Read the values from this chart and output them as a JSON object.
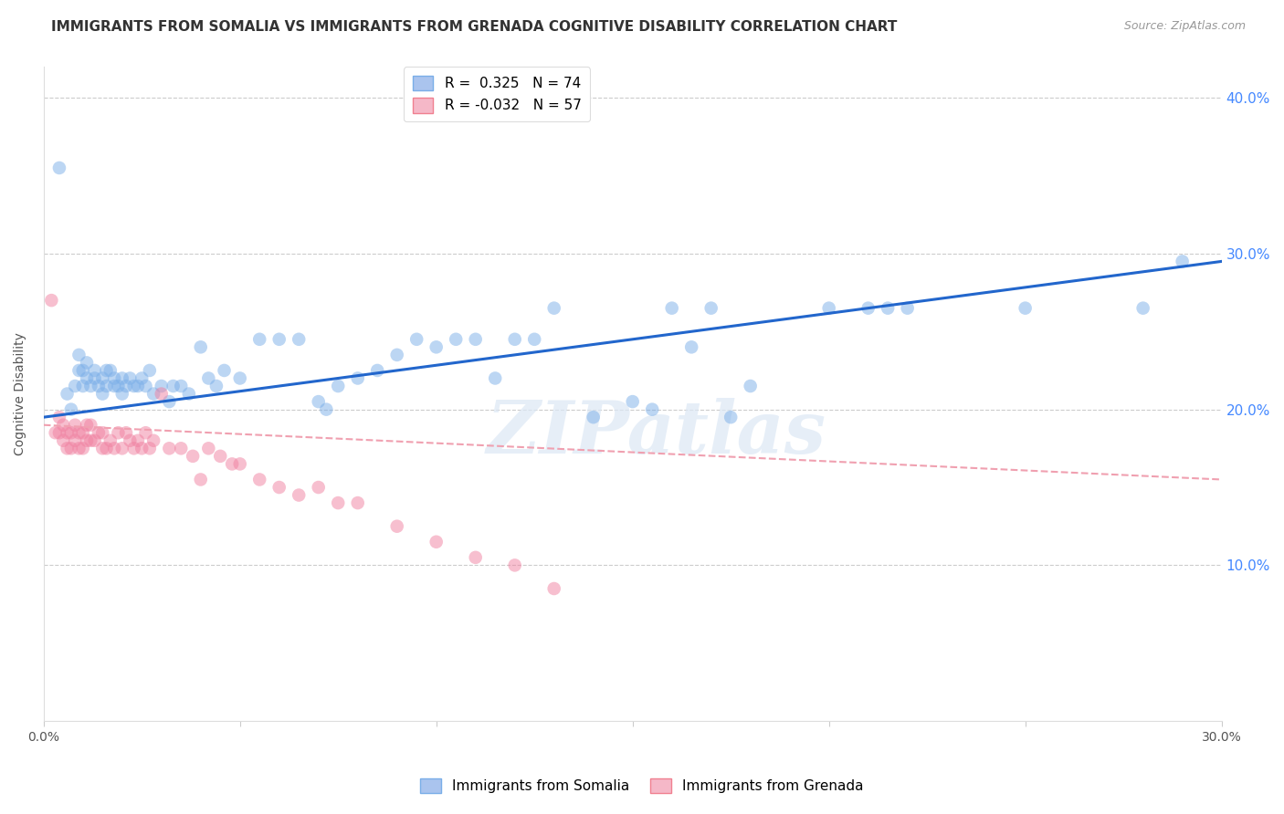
{
  "title": "IMMIGRANTS FROM SOMALIA VS IMMIGRANTS FROM GRENADA COGNITIVE DISABILITY CORRELATION CHART",
  "source": "Source: ZipAtlas.com",
  "ylabel": "Cognitive Disability",
  "xlim": [
    0.0,
    0.3
  ],
  "ylim": [
    0.0,
    0.42
  ],
  "grid_color": "#cccccc",
  "background_color": "#ffffff",
  "somalia_color": "#7aaee8",
  "grenada_color": "#f080a0",
  "somalia_line_color": "#2266cc",
  "grenada_line_color": "#f0a0b0",
  "right_ytick_color": "#4488ff",
  "r_somalia": 0.325,
  "n_somalia": 74,
  "r_grenada": -0.032,
  "n_grenada": 57,
  "somalia_scatter_x": [
    0.004,
    0.006,
    0.007,
    0.008,
    0.009,
    0.009,
    0.01,
    0.01,
    0.011,
    0.011,
    0.012,
    0.013,
    0.013,
    0.014,
    0.015,
    0.015,
    0.016,
    0.016,
    0.017,
    0.018,
    0.018,
    0.019,
    0.02,
    0.02,
    0.021,
    0.022,
    0.023,
    0.024,
    0.025,
    0.026,
    0.027,
    0.028,
    0.03,
    0.032,
    0.033,
    0.035,
    0.037,
    0.04,
    0.042,
    0.044,
    0.046,
    0.05,
    0.055,
    0.06,
    0.065,
    0.07,
    0.072,
    0.075,
    0.08,
    0.085,
    0.09,
    0.095,
    0.1,
    0.105,
    0.11,
    0.115,
    0.12,
    0.125,
    0.13,
    0.14,
    0.15,
    0.155,
    0.16,
    0.165,
    0.17,
    0.175,
    0.18,
    0.2,
    0.21,
    0.215,
    0.22,
    0.25,
    0.28,
    0.29
  ],
  "somalia_scatter_y": [
    0.355,
    0.21,
    0.2,
    0.215,
    0.225,
    0.235,
    0.215,
    0.225,
    0.22,
    0.23,
    0.215,
    0.22,
    0.225,
    0.215,
    0.21,
    0.22,
    0.215,
    0.225,
    0.225,
    0.215,
    0.22,
    0.215,
    0.21,
    0.22,
    0.215,
    0.22,
    0.215,
    0.215,
    0.22,
    0.215,
    0.225,
    0.21,
    0.215,
    0.205,
    0.215,
    0.215,
    0.21,
    0.24,
    0.22,
    0.215,
    0.225,
    0.22,
    0.245,
    0.245,
    0.245,
    0.205,
    0.2,
    0.215,
    0.22,
    0.225,
    0.235,
    0.245,
    0.24,
    0.245,
    0.245,
    0.22,
    0.245,
    0.245,
    0.265,
    0.195,
    0.205,
    0.2,
    0.265,
    0.24,
    0.265,
    0.195,
    0.215,
    0.265,
    0.265,
    0.265,
    0.265,
    0.265,
    0.265,
    0.295
  ],
  "grenada_scatter_x": [
    0.002,
    0.003,
    0.004,
    0.004,
    0.005,
    0.005,
    0.006,
    0.006,
    0.007,
    0.007,
    0.008,
    0.008,
    0.009,
    0.009,
    0.01,
    0.01,
    0.011,
    0.011,
    0.012,
    0.012,
    0.013,
    0.014,
    0.015,
    0.015,
    0.016,
    0.017,
    0.018,
    0.019,
    0.02,
    0.021,
    0.022,
    0.023,
    0.024,
    0.025,
    0.026,
    0.027,
    0.028,
    0.03,
    0.032,
    0.035,
    0.038,
    0.04,
    0.042,
    0.045,
    0.048,
    0.05,
    0.055,
    0.06,
    0.065,
    0.07,
    0.075,
    0.08,
    0.09,
    0.1,
    0.11,
    0.12,
    0.13
  ],
  "grenada_scatter_y": [
    0.27,
    0.185,
    0.185,
    0.195,
    0.18,
    0.19,
    0.175,
    0.185,
    0.175,
    0.185,
    0.18,
    0.19,
    0.175,
    0.185,
    0.175,
    0.185,
    0.18,
    0.19,
    0.18,
    0.19,
    0.18,
    0.185,
    0.175,
    0.185,
    0.175,
    0.18,
    0.175,
    0.185,
    0.175,
    0.185,
    0.18,
    0.175,
    0.18,
    0.175,
    0.185,
    0.175,
    0.18,
    0.21,
    0.175,
    0.175,
    0.17,
    0.155,
    0.175,
    0.17,
    0.165,
    0.165,
    0.155,
    0.15,
    0.145,
    0.15,
    0.14,
    0.14,
    0.125,
    0.115,
    0.105,
    0.1,
    0.085
  ],
  "watermark_text": "ZIPatlas",
  "legend_somalia_label": "Immigrants from Somalia",
  "legend_grenada_label": "Immigrants from Grenada",
  "title_fontsize": 11,
  "axis_label_fontsize": 10,
  "tick_fontsize": 10,
  "legend_fontsize": 11,
  "somalia_trendline_x": [
    0.0,
    0.3
  ],
  "somalia_trendline_y": [
    0.195,
    0.295
  ],
  "grenada_trendline_x": [
    0.0,
    0.3
  ],
  "grenada_trendline_y": [
    0.19,
    0.155
  ]
}
